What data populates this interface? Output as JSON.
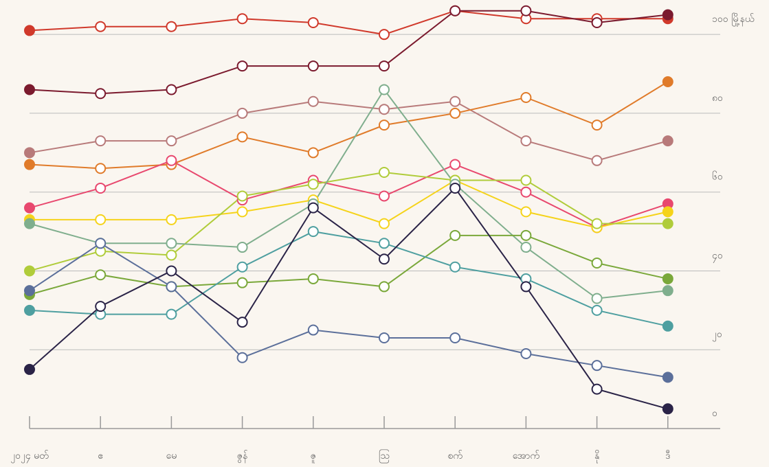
{
  "chart_data": {
    "type": "line",
    "categories": [
      "၂၀၂၄ မတ်",
      "ဧ",
      "မေ",
      "ဇွန်",
      "ဇူ",
      "ဩ",
      "စက်",
      "အောက်",
      "နို",
      "ဒီ"
    ],
    "series": [
      {
        "color": "#d0392b",
        "values": [
          101,
          102,
          102,
          104,
          103,
          100,
          106,
          104,
          104,
          104
        ]
      },
      {
        "color": "#7b1a2e",
        "values": [
          86,
          85,
          86,
          92,
          92,
          92,
          106,
          106,
          103,
          105
        ]
      },
      {
        "color": "#b87a7a",
        "values": [
          70,
          73,
          73,
          80,
          83,
          81,
          83,
          73,
          68,
          73
        ]
      },
      {
        "color": "#e07b2a",
        "values": [
          67,
          66,
          67,
          74,
          70,
          77,
          80,
          84,
          77,
          88
        ]
      },
      {
        "color": "#e8486e",
        "values": [
          56,
          61,
          68,
          58,
          63,
          59,
          67,
          60,
          51,
          57
        ]
      },
      {
        "color": "#f5d31a",
        "values": [
          53,
          53,
          53,
          55,
          58,
          52,
          63,
          55,
          51,
          55
        ]
      },
      {
        "color": "#b0cc3a",
        "values": [
          40,
          45,
          44,
          59,
          62,
          65,
          63,
          63,
          52,
          52
        ]
      },
      {
        "color": "#7fae8d",
        "values": [
          52,
          47,
          47,
          46,
          57,
          86,
          62,
          46,
          33,
          35
        ]
      },
      {
        "color": "#7aa83a",
        "values": [
          34,
          39,
          36,
          37,
          38,
          36,
          49,
          49,
          42,
          38
        ]
      },
      {
        "color": "#4e9fa0",
        "values": [
          30,
          29,
          29,
          41,
          50,
          47,
          41,
          38,
          30,
          26
        ]
      },
      {
        "color": "#5b6f9a",
        "values": [
          35,
          47,
          36,
          18,
          25,
          23,
          23,
          19,
          16,
          13
        ]
      },
      {
        "color": "#2a2347",
        "values": [
          15,
          31,
          40,
          27,
          56,
          43,
          61,
          36,
          10,
          5
        ]
      }
    ],
    "ylim": [
      0,
      107
    ],
    "yticks": [
      {
        "value": 0,
        "label": "၀"
      },
      {
        "value": 20,
        "label": "၂၀"
      },
      {
        "value": 40,
        "label": "၄၀"
      },
      {
        "value": 60,
        "label": "၆၀"
      },
      {
        "value": 80,
        "label": "၈၀"
      },
      {
        "value": 100,
        "label": "၁၀၀ မြို့နယ်"
      }
    ],
    "grid": true
  }
}
